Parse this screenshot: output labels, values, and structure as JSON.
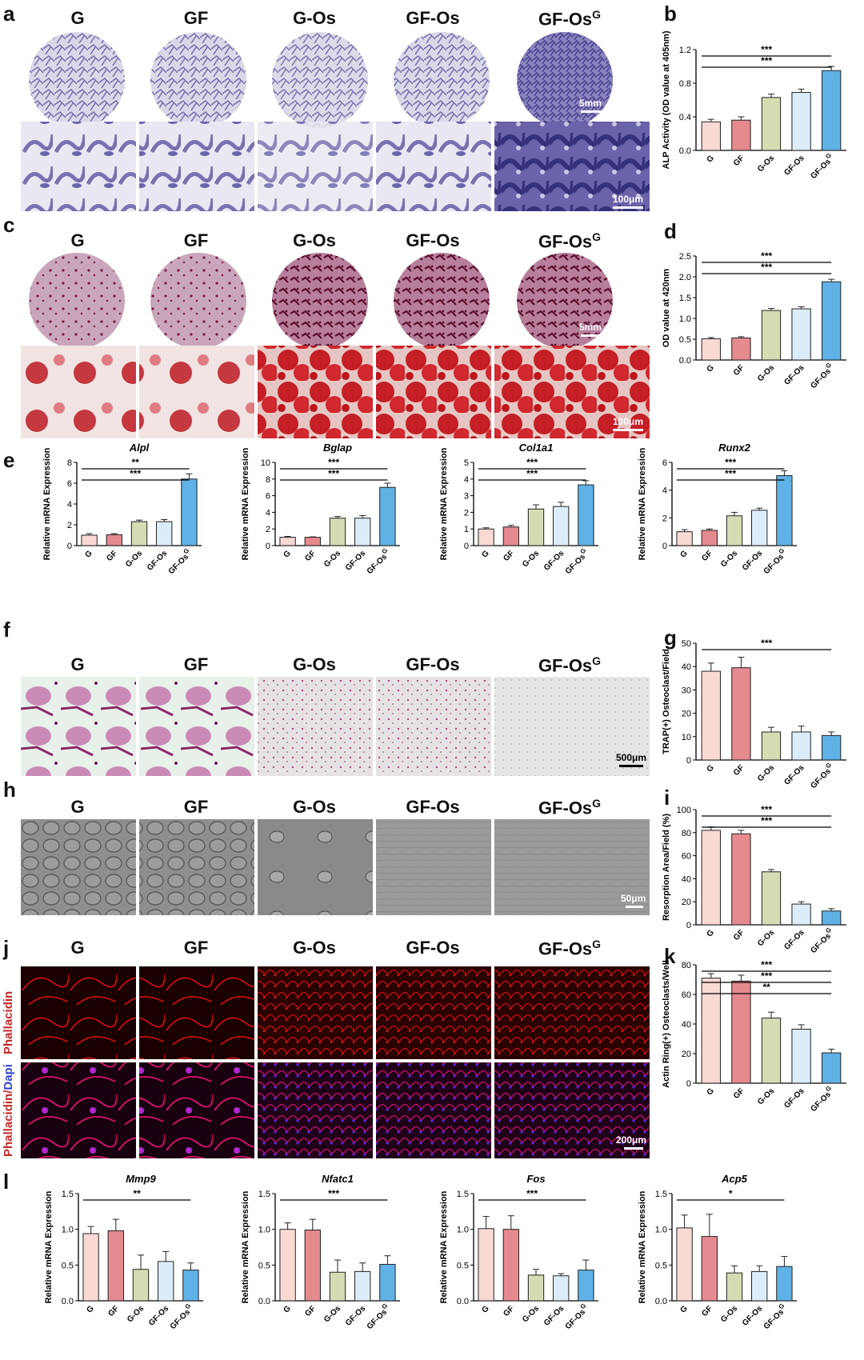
{
  "groups": [
    "G",
    "GF",
    "G-Os",
    "GF-Os",
    "GF-Os"
  ],
  "group_sup": "G",
  "panel_letters": {
    "a": "a",
    "b": "b",
    "c": "c",
    "d": "d",
    "e": "e",
    "f": "f",
    "g": "g",
    "h": "h",
    "i": "i",
    "j": "j",
    "k": "k",
    "l": "l"
  },
  "scale": {
    "a_dish": "5mm",
    "a_micro": "100μm",
    "c_dish": "5mm",
    "c_micro": "100μm",
    "f": "500μm",
    "h": "50μm",
    "j": "200μm"
  },
  "stain_labels": {
    "phallacidin": "Phallacidin",
    "combo_red": "Phallacidin/",
    "combo_blue": "Dapi"
  },
  "colors": {
    "bars": [
      "#f9d9d4",
      "#e58a8f",
      "#d5dcb4",
      "#dcecf8",
      "#5fb1e6"
    ],
    "alp_stain": "#5b53a0",
    "ars_stain": "#b8233c",
    "trap_stain": "#b04a8a",
    "phalloidin": "#d81b1b",
    "dapi": "#3a2fd4"
  },
  "chart_data": [
    {
      "id": "b",
      "type": "bar",
      "categories": [
        "G",
        "GF",
        "G-Os",
        "GF-Os",
        "GF-Os"
      ],
      "values": [
        0.34,
        0.36,
        0.63,
        0.69,
        0.95
      ],
      "errors": [
        0.03,
        0.04,
        0.04,
        0.04,
        0.05
      ],
      "ylabel": "ALP Activity (OD value at 405nm)",
      "ylim": [
        0,
        1.2
      ],
      "yticks": [
        0.0,
        0.4,
        0.8,
        1.2
      ],
      "sig": [
        "***",
        "***"
      ]
    },
    {
      "id": "d",
      "type": "bar",
      "categories": [
        "G",
        "GF",
        "G-Os",
        "GF-Os",
        "GF-Os"
      ],
      "values": [
        0.51,
        0.53,
        1.19,
        1.23,
        1.88
      ],
      "errors": [
        0.03,
        0.03,
        0.05,
        0.05,
        0.06
      ],
      "ylabel": "OD value at 420nm",
      "ylim": [
        0,
        2.5
      ],
      "yticks": [
        0.0,
        0.5,
        1.0,
        1.5,
        2.0,
        2.5
      ],
      "sig": [
        "***",
        "***"
      ]
    },
    {
      "id": "e1",
      "type": "bar",
      "title": "Alpl",
      "categories": [
        "G",
        "GF",
        "G-Os",
        "GF-Os",
        "GF-Os"
      ],
      "values": [
        1.0,
        1.05,
        2.3,
        2.3,
        6.4
      ],
      "errors": [
        0.15,
        0.1,
        0.15,
        0.2,
        0.5
      ],
      "ylabel": "Relative mRNA Expression",
      "ylim": [
        0,
        8
      ],
      "yticks": [
        0,
        2,
        4,
        6,
        8
      ],
      "sig": [
        "**",
        "***"
      ]
    },
    {
      "id": "e2",
      "type": "bar",
      "title": "Bglap",
      "categories": [
        "G",
        "GF",
        "G-Os",
        "GF-Os",
        "GF-Os"
      ],
      "values": [
        1.0,
        1.0,
        3.3,
        3.3,
        7.0
      ],
      "errors": [
        0.1,
        0.05,
        0.2,
        0.3,
        0.5
      ],
      "ylabel": "Relative mRNA Expression",
      "ylim": [
        0,
        10
      ],
      "yticks": [
        0,
        2,
        4,
        6,
        8,
        10
      ],
      "sig": [
        "***",
        "***"
      ]
    },
    {
      "id": "e3",
      "type": "bar",
      "title": "Col1a1",
      "categories": [
        "G",
        "GF",
        "G-Os",
        "GF-Os",
        "GF-Os"
      ],
      "values": [
        1.0,
        1.12,
        2.2,
        2.35,
        3.65
      ],
      "errors": [
        0.07,
        0.1,
        0.25,
        0.25,
        0.25
      ],
      "ylabel": "Relative mRNA Expression",
      "ylim": [
        0,
        5
      ],
      "yticks": [
        0,
        1,
        2,
        3,
        4,
        5
      ],
      "sig": [
        "***",
        "***"
      ]
    },
    {
      "id": "e4",
      "type": "bar",
      "title": "Runx2",
      "categories": [
        "G",
        "GF",
        "G-Os",
        "GF-Os",
        "GF-Os"
      ],
      "values": [
        1.0,
        1.1,
        2.15,
        2.55,
        5.05
      ],
      "errors": [
        0.15,
        0.1,
        0.25,
        0.15,
        0.35
      ],
      "ylabel": "Relative mRNA Expression",
      "ylim": [
        0,
        6
      ],
      "yticks": [
        0,
        2,
        4,
        6
      ],
      "sig": [
        "***",
        "***"
      ]
    },
    {
      "id": "g",
      "type": "bar",
      "categories": [
        "G",
        "GF",
        "G-Os",
        "GF-Os",
        "GF-Os"
      ],
      "values": [
        38,
        39.5,
        12,
        12,
        10.5
      ],
      "errors": [
        3.5,
        4.5,
        2,
        2.5,
        1.5
      ],
      "ylabel": "TRAP(+) Osteoclast/Field",
      "ylim": [
        0,
        50
      ],
      "yticks": [
        0,
        10,
        20,
        30,
        40,
        50
      ],
      "sig": [
        "***"
      ]
    },
    {
      "id": "i",
      "type": "bar",
      "categories": [
        "G",
        "GF",
        "G-Os",
        "GF-Os",
        "GF-Os"
      ],
      "values": [
        82,
        79,
        46,
        18,
        12
      ],
      "errors": [
        3,
        3,
        2,
        2,
        2
      ],
      "ylabel": "Resorption Area/Field (%)",
      "ylim": [
        0,
        100
      ],
      "yticks": [
        0,
        20,
        40,
        60,
        80,
        100
      ],
      "sig": [
        "***",
        "***"
      ]
    },
    {
      "id": "k",
      "type": "bar",
      "categories": [
        "G",
        "GF",
        "G-Os",
        "GF-Os",
        "GF-Os"
      ],
      "values": [
        71,
        69,
        44,
        36.5,
        20.5
      ],
      "errors": [
        3,
        4,
        4,
        3,
        2.5
      ],
      "ylabel": "Actin Ring(+) Osteoclasts/Well",
      "ylim": [
        0,
        80
      ],
      "yticks": [
        0,
        20,
        40,
        60,
        80
      ],
      "sig": [
        "***",
        "***",
        "**"
      ]
    },
    {
      "id": "l1",
      "type": "bar",
      "title": "Mmp9",
      "categories": [
        "G",
        "GF",
        "G-Os",
        "GF-Os",
        "GF-Os"
      ],
      "values": [
        0.94,
        0.98,
        0.44,
        0.55,
        0.43
      ],
      "errors": [
        0.1,
        0.16,
        0.2,
        0.14,
        0.1
      ],
      "ylabel": "Relative mRNA Expression",
      "ylim": [
        0,
        1.5
      ],
      "yticks": [
        0.0,
        0.5,
        1.0,
        1.5
      ],
      "sig": [
        "**"
      ]
    },
    {
      "id": "l2",
      "type": "bar",
      "title": "Nfatc1",
      "categories": [
        "G",
        "GF",
        "G-Os",
        "GF-Os",
        "GF-Os"
      ],
      "values": [
        1.0,
        0.99,
        0.4,
        0.41,
        0.51
      ],
      "errors": [
        0.09,
        0.15,
        0.17,
        0.12,
        0.12
      ],
      "ylabel": "Relative mRNA Expression",
      "ylim": [
        0,
        1.5
      ],
      "yticks": [
        0.0,
        0.5,
        1.0,
        1.5
      ],
      "sig": [
        "***"
      ]
    },
    {
      "id": "l3",
      "type": "bar",
      "title": "Fos",
      "categories": [
        "G",
        "GF",
        "G-Os",
        "GF-Os",
        "GF-Os"
      ],
      "values": [
        1.01,
        1.0,
        0.36,
        0.35,
        0.43
      ],
      "errors": [
        0.17,
        0.19,
        0.08,
        0.03,
        0.14
      ],
      "ylabel": "Relative mRNA Expression",
      "ylim": [
        0,
        1.5
      ],
      "yticks": [
        0.0,
        0.5,
        1.0,
        1.5
      ],
      "sig": [
        "***"
      ]
    },
    {
      "id": "l4",
      "type": "bar",
      "title": "Acp5",
      "categories": [
        "G",
        "GF",
        "G-Os",
        "GF-Os",
        "GF-Os"
      ],
      "values": [
        1.02,
        0.9,
        0.39,
        0.41,
        0.48
      ],
      "errors": [
        0.18,
        0.31,
        0.1,
        0.08,
        0.14
      ],
      "ylabel": "Relative mRNA Expression",
      "ylim": [
        0,
        1.5
      ],
      "yticks": [
        0.0,
        0.5,
        1.0,
        1.5
      ],
      "sig": [
        "*"
      ]
    }
  ]
}
